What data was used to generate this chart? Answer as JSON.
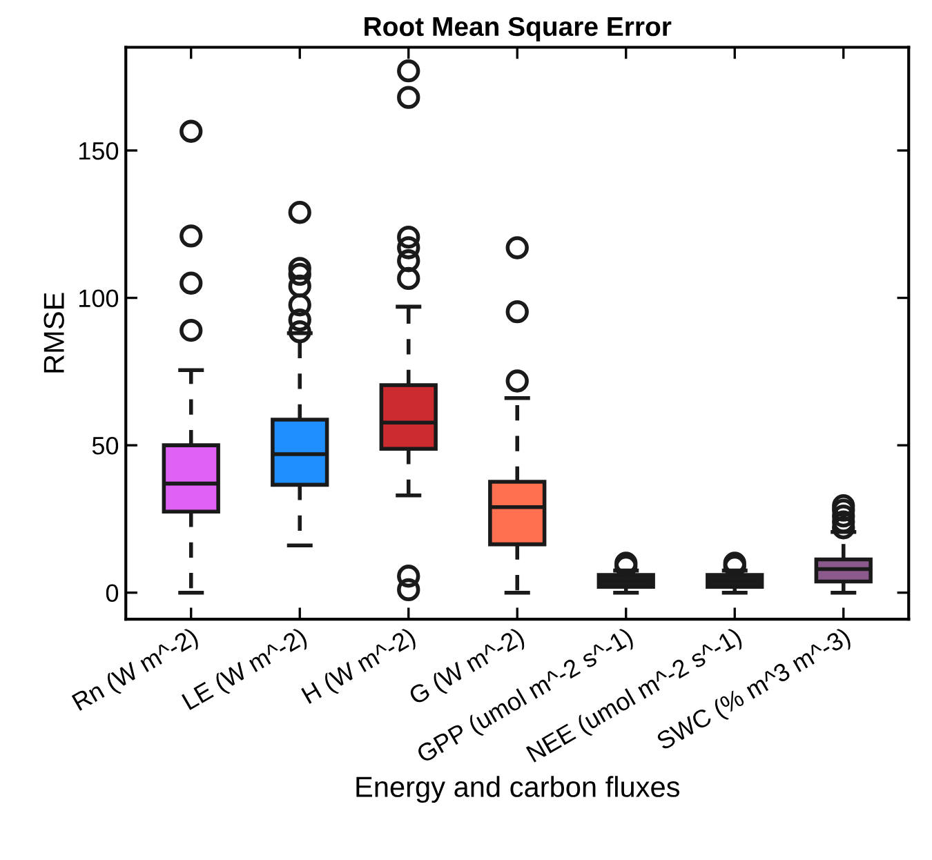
{
  "chart_data": {
    "type": "box",
    "title": "Root Mean Square Error",
    "xlabel": "Energy and carbon fluxes",
    "ylabel": "RMSE",
    "categories": [
      "Rn (W m^-2)",
      "LE (W m^-2)",
      "H (W m^-2)",
      "G (W m^-2)",
      "GPP (umol m^-2 s^-1)",
      "NEE (umol m^-2 s^-1)",
      "SWC (% m^3 m^-3)"
    ],
    "colors": [
      "#df62f5",
      "#1f8fff",
      "#cc2b30",
      "#ff7050",
      "#1c1c1c",
      "#1c1c1c",
      "#8a5a8c"
    ],
    "boxes": [
      {
        "low": 0,
        "q1": 27.5,
        "median": 37,
        "q3": 50,
        "high": 75.5,
        "outliers": [
          89,
          105,
          121,
          156.5
        ]
      },
      {
        "low": 16,
        "q1": 36.6,
        "median": 47,
        "q3": 58.7,
        "high": 88,
        "outliers": [
          88.5,
          92.5,
          97.6,
          104,
          108,
          110,
          129
        ]
      },
      {
        "low": 33,
        "q1": 48.8,
        "median": 57.7,
        "q3": 70.4,
        "high": 97,
        "outliers": [
          1,
          5.6,
          106.6,
          112.6,
          117,
          120.6,
          168,
          177
        ]
      },
      {
        "low": 0,
        "q1": 16.4,
        "median": 29,
        "q3": 37.6,
        "high": 66,
        "outliers": [
          71.8,
          95.3,
          117
        ]
      },
      {
        "low": 0,
        "q1": 2,
        "median": 4,
        "q3": 6,
        "high": 7.5,
        "outliers": [
          9,
          10
        ]
      },
      {
        "low": 0,
        "q1": 2,
        "median": 4,
        "q3": 6,
        "high": 7.5,
        "outliers": [
          9,
          10
        ]
      },
      {
        "low": 0,
        "q1": 3.8,
        "median": 8,
        "q3": 11.3,
        "high": 20.6,
        "outliers": [
          22,
          24,
          26,
          28,
          29.5
        ]
      }
    ],
    "ylim": [
      -9,
      185
    ],
    "yticks": [
      0,
      50,
      100,
      150
    ],
    "grid": false
  }
}
